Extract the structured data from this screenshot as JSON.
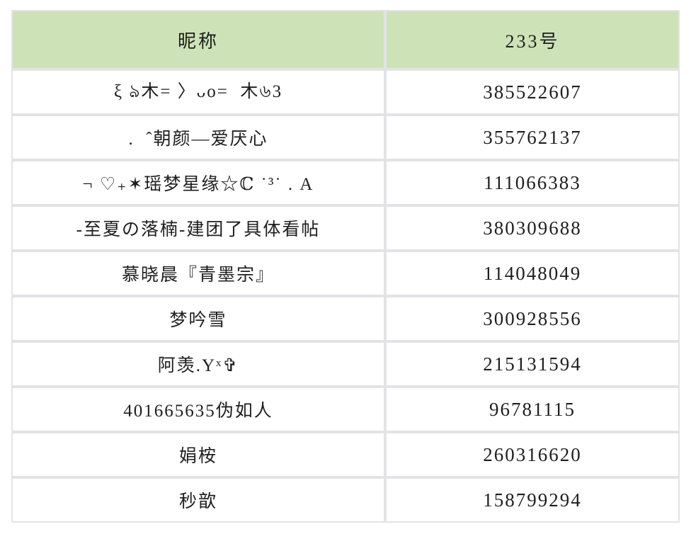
{
  "table": {
    "header": {
      "nickname_label": "昵称",
      "number_label": "233号"
    },
    "rows": [
      {
        "nickname": "ξ ঌ木= 〉ᴗo=  木৬3",
        "number": "385522607"
      },
      {
        "nickname": ".  ˆ朝颜—爱厌心",
        "number": "355762137"
      },
      {
        "nickname": "¬ ♡₊✶瑶梦星缘☆ℂ ˙³˙ . A",
        "number": "111066383"
      },
      {
        "nickname": "-至夏の落楠-建团了具体看帖",
        "number": "380309688"
      },
      {
        "nickname": "慕晓晨『青墨宗』",
        "number": "114048049"
      },
      {
        "nickname": "梦吟雪",
        "number": "300928556"
      },
      {
        "nickname": "阿羡.Yˣ✞",
        "number": "215131594"
      },
      {
        "nickname": "401665635伪如人",
        "number": "96781115"
      },
      {
        "nickname": "娟桉",
        "number": "260316620"
      },
      {
        "nickname": "秒歆",
        "number": "158799294"
      }
    ],
    "colors": {
      "header_bg": "#cde3b7",
      "gridline": "#e3e3e6",
      "text": "#1e1e1e",
      "row_bg": "#ffffff"
    }
  },
  "chart_data": {
    "type": "table",
    "columns": [
      "昵称",
      "233号"
    ],
    "rows": [
      [
        "ξ ঌ木= 〉ᴗo=  木৬3",
        385522607
      ],
      [
        ".  ˆ朝颜—爱厌心",
        355762137
      ],
      [
        "¬ ♡₊✶瑶梦星缘☆ℂ ˙³˙ . A",
        111066383
      ],
      [
        "-至夏の落楠-建团了具体看帖",
        380309688
      ],
      [
        "慕晓晨『青墨宗』",
        114048049
      ],
      [
        "梦吟雪",
        300928556
      ],
      [
        "阿羡.Yˣ✞",
        215131594
      ],
      [
        "401665635伪如人",
        96781115
      ],
      [
        "娟桉",
        260316620
      ],
      [
        "秒歆",
        158799294
      ]
    ],
    "layout": "two-column bordered table, green header row, all cells center-aligned, grid on"
  }
}
